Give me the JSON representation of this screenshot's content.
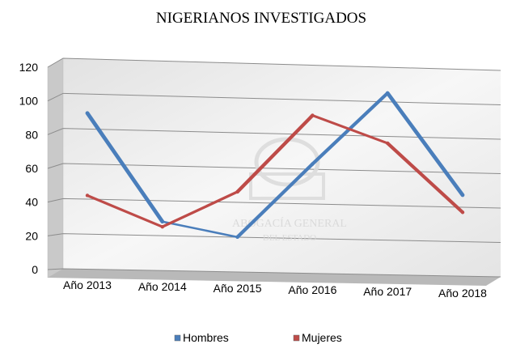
{
  "chart_data": {
    "type": "line",
    "title": "NIGERIANOS INVESTIGADOS",
    "categories": [
      "Año 2013",
      "Año 2014",
      "Año 2015",
      "Año 2016",
      "Año 2017",
      "Año 2018"
    ],
    "series": [
      {
        "name": "Hombres",
        "values": [
          90,
          29,
          21,
          64,
          106,
          48
        ],
        "color": "#4a7ebb"
      },
      {
        "name": "Mujeres",
        "values": [
          43,
          26,
          47,
          92,
          77,
          38
        ],
        "color": "#be4b48"
      }
    ],
    "y_ticks": [
      "0",
      "20",
      "40",
      "60",
      "80",
      "100",
      "120"
    ],
    "ylim": [
      0,
      120
    ],
    "grid": true,
    "legend_position": "bottom",
    "watermark": [
      "ABOGACÍA GENERAL",
      "DEL ESTADO"
    ]
  }
}
